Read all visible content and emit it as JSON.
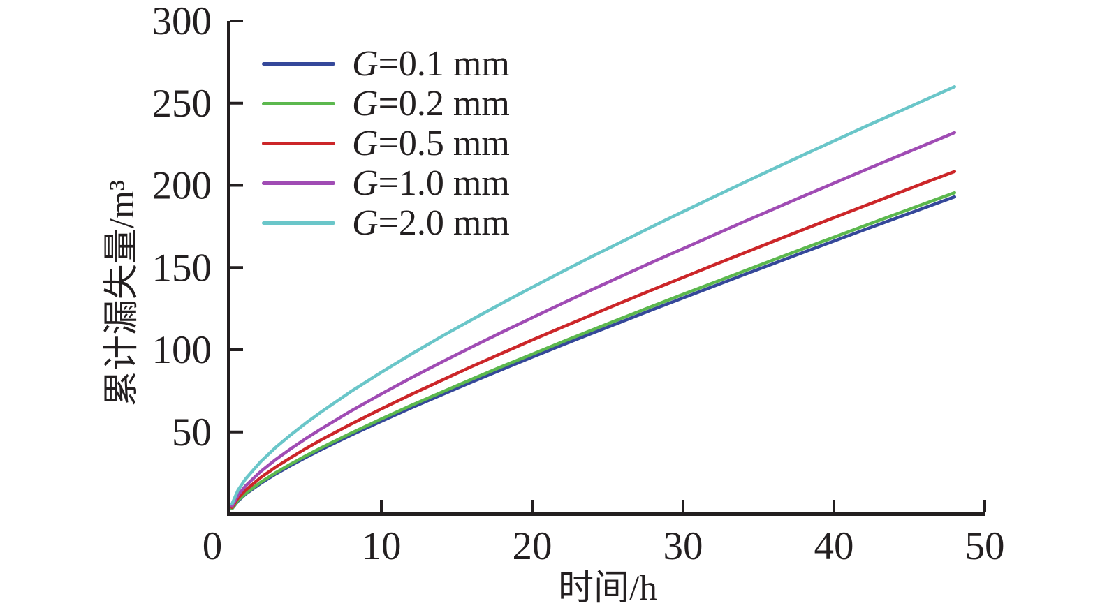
{
  "figure": {
    "background_color": "#ffffff",
    "text_color": "#231f20"
  },
  "chart_data": {
    "type": "line",
    "title": "",
    "xlabel": "时间/h",
    "ylabel": "累计漏失量/m³",
    "xlim": [
      0,
      50
    ],
    "ylim": [
      0,
      300
    ],
    "x_ticks": [
      0,
      10,
      20,
      30,
      40,
      50
    ],
    "y_ticks": [
      50,
      100,
      150,
      200,
      250,
      300
    ],
    "grid": false,
    "legend_position": "upper-left-inside",
    "axis_color": "#231f20",
    "x": [
      0.1,
      0.5,
      1,
      2,
      3,
      4,
      5,
      6,
      8,
      10,
      12,
      14,
      16,
      18,
      20,
      22,
      24,
      26,
      28,
      30,
      32,
      34,
      36,
      38,
      40,
      42,
      44,
      46,
      48
    ],
    "series": [
      {
        "label": "G=0.1 mm",
        "color": "#35489a",
        "values": [
          3.3,
          8.0,
          12.2,
          18.7,
          24.4,
          29.6,
          34.5,
          39.2,
          48.1,
          56.5,
          64.7,
          72.6,
          80.4,
          88.0,
          95.5,
          102.9,
          110.1,
          117.3,
          124.5,
          131.5,
          138.5,
          145.5,
          152.4,
          159.3,
          166.1,
          172.9,
          179.6,
          186.3,
          193.0
        ]
      },
      {
        "label": "G=0.2 mm",
        "color": "#5cb84e",
        "values": [
          3.4,
          8.4,
          12.6,
          19.4,
          25.2,
          30.5,
          35.5,
          40.3,
          49.3,
          57.9,
          66.2,
          74.2,
          82.1,
          89.8,
          97.3,
          104.8,
          112.1,
          119.4,
          126.6,
          133.7,
          140.7,
          147.7,
          154.7,
          161.6,
          168.4,
          175.3,
          182.1,
          188.8,
          195.5
        ]
      },
      {
        "label": "G=0.5 mm",
        "color": "#cc2629",
        "values": [
          4.1,
          9.8,
          14.6,
          22.2,
          28.6,
          34.4,
          39.9,
          45.1,
          54.8,
          64.0,
          72.9,
          81.4,
          89.8,
          97.9,
          105.9,
          113.7,
          121.4,
          129.0,
          136.6,
          144.0,
          151.4,
          158.7,
          166.0,
          173.2,
          180.3,
          187.4,
          194.4,
          201.5,
          208.4
        ]
      },
      {
        "label": "G=1.0 mm",
        "color": "#a04cb4",
        "values": [
          4.8,
          11.6,
          17.2,
          25.9,
          33.2,
          39.8,
          46.0,
          51.8,
          62.8,
          73.1,
          83.0,
          92.5,
          101.7,
          110.7,
          119.5,
          128.2,
          136.7,
          145.1,
          153.4,
          161.5,
          169.6,
          177.7,
          185.6,
          193.5,
          201.3,
          209.1,
          216.8,
          224.4,
          232.1
        ]
      },
      {
        "label": "G=2.0 mm",
        "color": "#6ac6c9",
        "values": [
          6.2,
          14.6,
          21.4,
          31.9,
          40.6,
          48.3,
          55.4,
          62.1,
          74.7,
          86.3,
          97.4,
          108.1,
          118.3,
          128.3,
          138.0,
          147.5,
          156.9,
          166.0,
          175.1,
          184.0,
          192.8,
          201.5,
          210.1,
          218.6,
          227.0,
          235.4,
          243.6,
          251.8,
          260.0
        ]
      }
    ]
  }
}
